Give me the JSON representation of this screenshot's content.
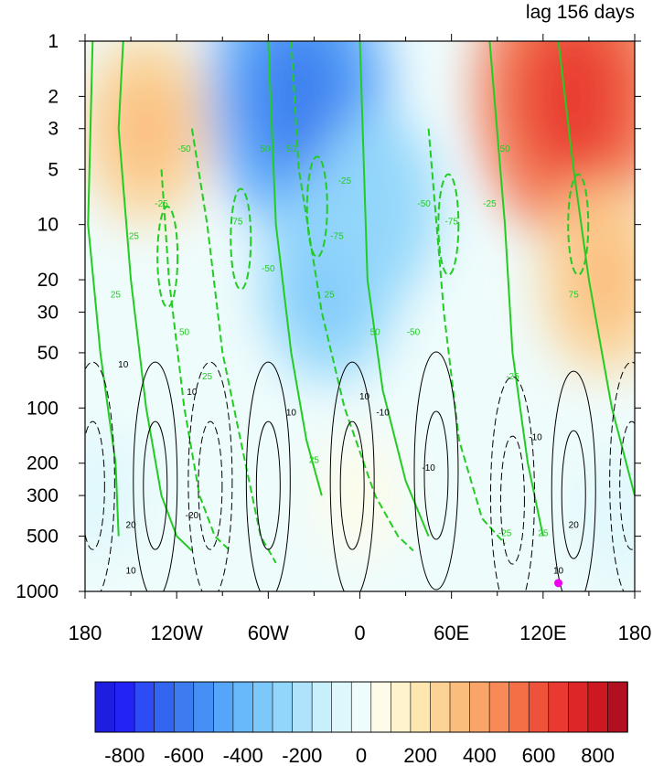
{
  "chart_data": {
    "type": "heatmap",
    "title": "lag 156 days",
    "x_axis": {
      "ticks": [
        "180",
        "120W",
        "60W",
        "0",
        "60E",
        "120E",
        "180"
      ],
      "range_deg": [
        -180,
        180
      ]
    },
    "y_axis": {
      "scale": "log",
      "reversed": true,
      "ticks": [
        "1",
        "2",
        "3",
        "5",
        "10",
        "20",
        "30",
        "50",
        "100",
        "200",
        "300",
        "500",
        "1000"
      ],
      "range": [
        1,
        1000
      ]
    },
    "colorbar": {
      "ticks": [
        "-800",
        "-600",
        "-400",
        "-200",
        "0",
        "200",
        "400",
        "600",
        "800"
      ],
      "range": [
        -900,
        900
      ],
      "colors": [
        "#1e1ee0",
        "#2323f5",
        "#2d4cf5",
        "#3366f0",
        "#3d7cf0",
        "#4690f5",
        "#55a5fa",
        "#68b9fb",
        "#7cc8fb",
        "#92d6fb",
        "#aee3fb",
        "#c8effc",
        "#def7fc",
        "#effcfc",
        "#fefce8",
        "#fef3cc",
        "#fde6b0",
        "#fcd394",
        "#fbbd7c",
        "#f9a468",
        "#f78a56",
        "#f46e46",
        "#ef523a",
        "#e83a30",
        "#dd2628",
        "#cd1822",
        "#b20f20"
      ]
    },
    "shading_field": [
      {
        "lon": -140,
        "p": 3,
        "value": 250
      },
      {
        "lon": -40,
        "p": 2,
        "value": -500
      },
      {
        "lon": -20,
        "p": 20,
        "value": -300
      },
      {
        "lon": 10,
        "p": 8,
        "value": -250
      },
      {
        "lon": 140,
        "p": 2,
        "value": 550
      },
      {
        "lon": 160,
        "p": 20,
        "value": 250
      },
      {
        "lon": -170,
        "p": 300,
        "value": -60
      },
      {
        "lon": 170,
        "p": 400,
        "value": -70
      },
      {
        "lon": 0,
        "p": 300,
        "value": 40
      }
    ],
    "contour_sets": [
      {
        "color": "#22cc22",
        "labels": [
          "25",
          "25",
          "50",
          "50",
          "-50",
          "-50",
          "-50",
          "-25",
          "-25",
          "75",
          "-75",
          "-75",
          "25",
          "25",
          "50",
          "50",
          "-50",
          "-25",
          "-25",
          "25",
          "-25",
          "25",
          "75",
          "50"
        ]
      },
      {
        "color": "#000000",
        "labels": [
          "10",
          "10",
          "10",
          "10",
          "-10",
          "-10",
          "20",
          "20",
          "-20",
          "10",
          "10",
          "-10"
        ]
      }
    ],
    "marker": {
      "lon": 130,
      "p": 900,
      "color": "#ee00ee"
    }
  }
}
